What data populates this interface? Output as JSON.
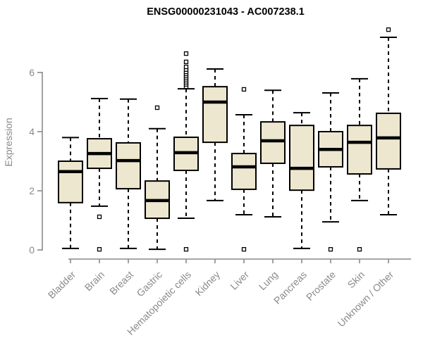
{
  "chart_data": {
    "type": "boxplot",
    "title": "ENSG00000231043 - AC007238.1",
    "ylabel": "Expression",
    "xlabel": "",
    "yticks": [
      0,
      2,
      4,
      6
    ],
    "ylim": [
      0,
      7.6
    ],
    "grid": false,
    "legend": "none",
    "colors": {
      "box_fill": "#ede7cf",
      "box_stroke": "#000000",
      "median": "#000000",
      "whisker": "#000000",
      "outlier_fill": "#ffffff",
      "outlier_stroke": "#000000",
      "axis": "#8a8a8a",
      "tick_label": "#8a8a8a",
      "title": "#000000",
      "background": "#ffffff"
    },
    "boxes": [
      {
        "category": "Bladder",
        "whisker_low": 0.05,
        "q1": 1.6,
        "median": 2.65,
        "q3": 3.0,
        "whisker_high": 3.8,
        "outliers": []
      },
      {
        "category": "Brain",
        "whisker_low": 1.48,
        "q1": 2.76,
        "median": 3.26,
        "q3": 3.76,
        "whisker_high": 5.12,
        "outliers": [
          1.12,
          0.02
        ]
      },
      {
        "category": "Breast",
        "whisker_low": 0.05,
        "q1": 2.07,
        "median": 3.02,
        "q3": 3.62,
        "whisker_high": 5.1,
        "outliers": []
      },
      {
        "category": "Gastric",
        "whisker_low": 0.02,
        "q1": 1.07,
        "median": 1.67,
        "q3": 2.33,
        "whisker_high": 4.1,
        "outliers": [
          4.81
        ]
      },
      {
        "category": "Hematopoietic cells",
        "whisker_low": 1.07,
        "q1": 2.69,
        "median": 3.29,
        "q3": 3.81,
        "whisker_high": 5.45,
        "outliers": [
          0.02,
          5.52,
          5.6,
          5.67,
          5.74,
          5.81,
          5.88,
          5.95,
          6.02,
          6.1,
          6.19,
          6.36,
          6.64
        ]
      },
      {
        "category": "Kidney",
        "whisker_low": 1.67,
        "q1": 3.64,
        "median": 5.0,
        "q3": 5.52,
        "whisker_high": 6.12,
        "outliers": []
      },
      {
        "category": "Liver",
        "whisker_low": 1.19,
        "q1": 2.05,
        "median": 2.81,
        "q3": 3.26,
        "whisker_high": 4.57,
        "outliers": [
          5.43,
          0.02
        ]
      },
      {
        "category": "Lung",
        "whisker_low": 1.12,
        "q1": 2.93,
        "median": 3.69,
        "q3": 4.33,
        "whisker_high": 5.4,
        "outliers": []
      },
      {
        "category": "Pancreas",
        "whisker_low": 0.05,
        "q1": 2.02,
        "median": 2.76,
        "q3": 4.21,
        "whisker_high": 4.64,
        "outliers": []
      },
      {
        "category": "Prostate",
        "whisker_low": 0.95,
        "q1": 2.81,
        "median": 3.4,
        "q3": 4.0,
        "whisker_high": 5.31,
        "outliers": [
          0.02
        ]
      },
      {
        "category": "Skin",
        "whisker_low": 1.67,
        "q1": 2.57,
        "median": 3.64,
        "q3": 4.21,
        "whisker_high": 5.79,
        "outliers": [
          0.02
        ]
      },
      {
        "category": "Unknown / Other",
        "whisker_low": 1.19,
        "q1": 2.74,
        "median": 3.79,
        "q3": 4.62,
        "whisker_high": 7.19,
        "outliers": [
          7.45
        ]
      }
    ]
  }
}
